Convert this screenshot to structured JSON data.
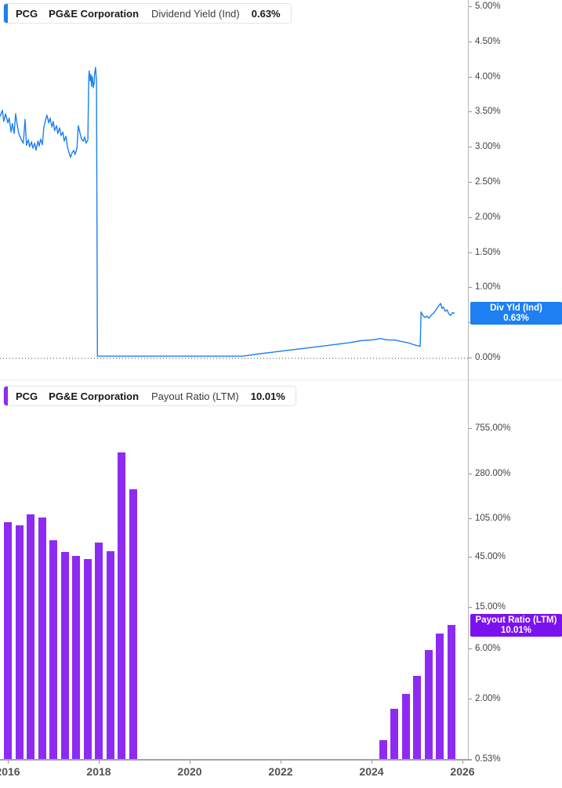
{
  "x_axis": {
    "ticks": [
      {
        "label": "2016",
        "year": 2016
      },
      {
        "label": "2018",
        "year": 2018
      },
      {
        "label": "2020",
        "year": 2020
      },
      {
        "label": "2022",
        "year": 2022
      },
      {
        "label": "2024",
        "year": 2024
      },
      {
        "label": "2026",
        "year": 2026
      }
    ]
  },
  "chart_data": [
    {
      "type": "line",
      "title": "PCG PG&E Corporation Dividend Yield (Ind) 0.63%",
      "legend": {
        "ticker": "PCG",
        "company": "PG&E Corporation",
        "metric": "Dividend Yield (Ind)",
        "value": "0.63%"
      },
      "color": "#1d7ff2",
      "value_label": {
        "line1": "Div Yld (Ind)",
        "line2": "0.63%",
        "value": 0.63,
        "color": "#1d7ff2"
      },
      "y_scale": "linear",
      "ylim": [
        0,
        5
      ],
      "zero_line_dotted": true,
      "legend_position": "top-left",
      "y_ticks": [
        {
          "label": "5.00%",
          "value": 5.0
        },
        {
          "label": "4.50%",
          "value": 4.5
        },
        {
          "label": "4.00%",
          "value": 4.0
        },
        {
          "label": "3.50%",
          "value": 3.5
        },
        {
          "label": "3.00%",
          "value": 3.0
        },
        {
          "label": "2.50%",
          "value": 2.5
        },
        {
          "label": "2.00%",
          "value": 2.0
        },
        {
          "label": "1.50%",
          "value": 1.5
        },
        {
          "label": "1.00%",
          "value": 1.0
        },
        {
          "label": "0.50%",
          "value": 0.5
        },
        {
          "label": "0.00%",
          "value": 0.0
        }
      ],
      "points": [
        [
          2015.83,
          3.43
        ],
        [
          2015.88,
          3.52
        ],
        [
          2015.91,
          3.36
        ],
        [
          2015.95,
          3.47
        ],
        [
          2016.0,
          3.34
        ],
        [
          2016.03,
          3.41
        ],
        [
          2016.07,
          3.21
        ],
        [
          2016.1,
          3.33
        ],
        [
          2016.14,
          3.19
        ],
        [
          2016.17,
          3.47
        ],
        [
          2016.21,
          3.3
        ],
        [
          2016.24,
          3.19
        ],
        [
          2016.29,
          3.11
        ],
        [
          2016.34,
          3.05
        ],
        [
          2016.38,
          3.39
        ],
        [
          2016.41,
          3.02
        ],
        [
          2016.45,
          3.1
        ],
        [
          2016.48,
          3.0
        ],
        [
          2016.52,
          3.07
        ],
        [
          2016.55,
          2.98
        ],
        [
          2016.59,
          3.05
        ],
        [
          2016.62,
          2.95
        ],
        [
          2016.66,
          3.08
        ],
        [
          2016.69,
          3.01
        ],
        [
          2016.72,
          3.11
        ],
        [
          2016.76,
          3.03
        ],
        [
          2016.79,
          3.27
        ],
        [
          2016.83,
          3.38
        ],
        [
          2016.86,
          3.45
        ],
        [
          2016.9,
          3.34
        ],
        [
          2016.93,
          3.41
        ],
        [
          2016.97,
          3.28
        ],
        [
          2017.0,
          3.36
        ],
        [
          2017.03,
          3.23
        ],
        [
          2017.07,
          3.3
        ],
        [
          2017.1,
          3.19
        ],
        [
          2017.14,
          3.27
        ],
        [
          2017.17,
          3.16
        ],
        [
          2017.21,
          3.21
        ],
        [
          2017.24,
          3.08
        ],
        [
          2017.28,
          3.15
        ],
        [
          2017.31,
          3.0
        ],
        [
          2017.34,
          2.93
        ],
        [
          2017.38,
          2.85
        ],
        [
          2017.41,
          2.91
        ],
        [
          2017.45,
          2.95
        ],
        [
          2017.48,
          2.89
        ],
        [
          2017.52,
          2.98
        ],
        [
          2017.55,
          3.3
        ],
        [
          2017.59,
          3.19
        ],
        [
          2017.62,
          3.11
        ],
        [
          2017.66,
          3.08
        ],
        [
          2017.69,
          3.14
        ],
        [
          2017.72,
          3.05
        ],
        [
          2017.76,
          3.1
        ],
        [
          2017.78,
          3.97
        ],
        [
          2017.79,
          4.08
        ],
        [
          2017.81,
          3.94
        ],
        [
          2017.83,
          4.03
        ],
        [
          2017.84,
          3.86
        ],
        [
          2017.86,
          4.0
        ],
        [
          2017.88,
          3.84
        ],
        [
          2017.9,
          3.92
        ],
        [
          2017.91,
          4.05
        ],
        [
          2017.93,
          4.13
        ],
        [
          2017.95,
          3.95
        ],
        [
          2017.97,
          0.02
        ],
        [
          2018.5,
          0.02
        ],
        [
          2019.0,
          0.02
        ],
        [
          2019.5,
          0.02
        ],
        [
          2020.0,
          0.02
        ],
        [
          2020.5,
          0.02
        ],
        [
          2021.0,
          0.02
        ],
        [
          2021.17,
          0.02
        ],
        [
          2021.5,
          0.05
        ],
        [
          2022.0,
          0.09
        ],
        [
          2022.5,
          0.13
        ],
        [
          2023.0,
          0.17
        ],
        [
          2023.5,
          0.21
        ],
        [
          2023.76,
          0.24
        ],
        [
          2024.0,
          0.25
        ],
        [
          2024.2,
          0.27
        ],
        [
          2024.35,
          0.25
        ],
        [
          2024.5,
          0.25
        ],
        [
          2024.65,
          0.23
        ],
        [
          2024.8,
          0.21
        ],
        [
          2024.9,
          0.19
        ],
        [
          2025.0,
          0.17
        ],
        [
          2025.07,
          0.16
        ],
        [
          2025.09,
          0.65
        ],
        [
          2025.13,
          0.6
        ],
        [
          2025.17,
          0.57
        ],
        [
          2025.22,
          0.59
        ],
        [
          2025.26,
          0.56
        ],
        [
          2025.31,
          0.6
        ],
        [
          2025.36,
          0.63
        ],
        [
          2025.42,
          0.68
        ],
        [
          2025.47,
          0.73
        ],
        [
          2025.52,
          0.77
        ],
        [
          2025.55,
          0.7
        ],
        [
          2025.58,
          0.72
        ],
        [
          2025.62,
          0.66
        ],
        [
          2025.66,
          0.68
        ],
        [
          2025.7,
          0.62
        ],
        [
          2025.74,
          0.6
        ],
        [
          2025.78,
          0.64
        ],
        [
          2025.83,
          0.63
        ]
      ]
    },
    {
      "type": "bar",
      "title": "PCG PG&E Corporation Payout Ratio (LTM) 10.01%",
      "legend": {
        "ticker": "PCG",
        "company": "PG&E Corporation",
        "metric": "Payout Ratio (LTM)",
        "value": "10.01%"
      },
      "color": "#8e2bf2",
      "value_label": {
        "line1": "Payout Ratio (LTM)",
        "line2": "10.01%",
        "value": 10.01,
        "color": "#7c11f0"
      },
      "y_scale": "log",
      "legend_position": "top-left",
      "y_ticks": [
        {
          "label": "755.00%",
          "value": 755
        },
        {
          "label": "280.00%",
          "value": 280
        },
        {
          "label": "105.00%",
          "value": 105
        },
        {
          "label": "45.00%",
          "value": 45
        },
        {
          "label": "15.00%",
          "value": 15
        },
        {
          "label": "6.00%",
          "value": 6
        },
        {
          "label": "2.00%",
          "value": 2
        },
        {
          "label": "0.53%",
          "value": 0.53
        }
      ],
      "bars": [
        {
          "quarter": "Q4 2015",
          "value": 96
        },
        {
          "quarter": "Q1 2016",
          "value": 89
        },
        {
          "quarter": "Q2 2016",
          "value": 114
        },
        {
          "quarter": "Q3 2016",
          "value": 106
        },
        {
          "quarter": "Q4 2016",
          "value": 64
        },
        {
          "quarter": "Q1 2017",
          "value": 50
        },
        {
          "quarter": "Q2 2017",
          "value": 46
        },
        {
          "quarter": "Q3 2017",
          "value": 43
        },
        {
          "quarter": "Q4 2017",
          "value": 61
        },
        {
          "quarter": "Q1 2018",
          "value": 51
        },
        {
          "quarter": "Q2 2018",
          "value": 440
        },
        {
          "quarter": "Q3 2018",
          "value": 197
        },
        {
          "quarter": "Q1 2024",
          "value": 0.8
        },
        {
          "quarter": "Q2 2024",
          "value": 1.6
        },
        {
          "quarter": "Q3 2024",
          "value": 2.2
        },
        {
          "quarter": "Q4 2024",
          "value": 3.3
        },
        {
          "quarter": "Q1 2025",
          "value": 5.8
        },
        {
          "quarter": "Q2 2025",
          "value": 8.3
        },
        {
          "quarter": "Q3 2025",
          "value": 10.01
        }
      ]
    }
  ]
}
